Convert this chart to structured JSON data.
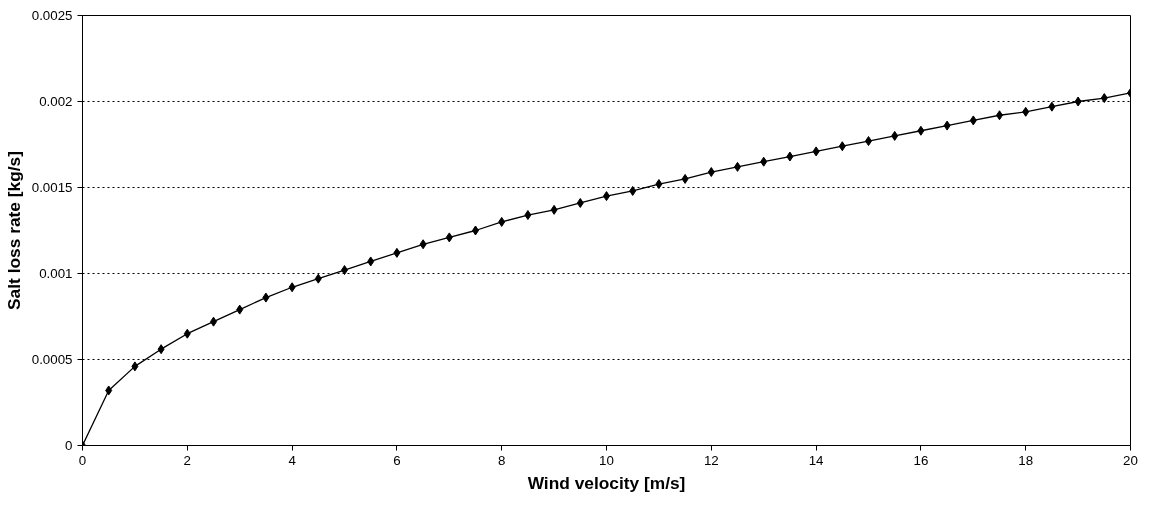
{
  "chart_data": {
    "type": "line",
    "xlabel": "Wind velocity [m/s]",
    "ylabel": "Salt loss rate [kg/s]",
    "x": [
      0,
      0.5,
      1,
      1.5,
      2,
      2.5,
      3,
      3.5,
      4,
      4.5,
      5,
      5.5,
      6,
      6.5,
      7,
      7.5,
      8,
      8.5,
      9,
      9.5,
      10,
      10.5,
      11,
      11.5,
      12,
      12.5,
      13,
      13.5,
      14,
      14.5,
      15,
      15.5,
      16,
      16.5,
      17,
      17.5,
      18,
      18.5,
      19,
      19.5,
      20
    ],
    "series": [
      {
        "color": "#000000",
        "values": [
          0,
          0.00032,
          0.00046,
          0.00056,
          0.00065,
          0.00072,
          0.00079,
          0.00086,
          0.00092,
          0.00097,
          0.00102,
          0.00107,
          0.00112,
          0.00117,
          0.00121,
          0.00125,
          0.0013,
          0.00134,
          0.00137,
          0.00141,
          0.00145,
          0.00148,
          0.00152,
          0.00155,
          0.00159,
          0.00162,
          0.00165,
          0.00168,
          0.00171,
          0.00174,
          0.00177,
          0.0018,
          0.00183,
          0.00186,
          0.00189,
          0.00192,
          0.00194,
          0.00197,
          0.002,
          0.00202,
          0.00205
        ]
      }
    ],
    "xlim": [
      0,
      20
    ],
    "xticks": [
      0,
      2,
      4,
      6,
      8,
      10,
      12,
      14,
      16,
      18,
      20
    ],
    "ylim": [
      0,
      0.0025
    ],
    "yticks": [
      0,
      0.0005,
      0.001,
      0.0015,
      0.002,
      0.0025
    ],
    "grid": "y",
    "marker": "diamond",
    "line_style": "solid"
  }
}
